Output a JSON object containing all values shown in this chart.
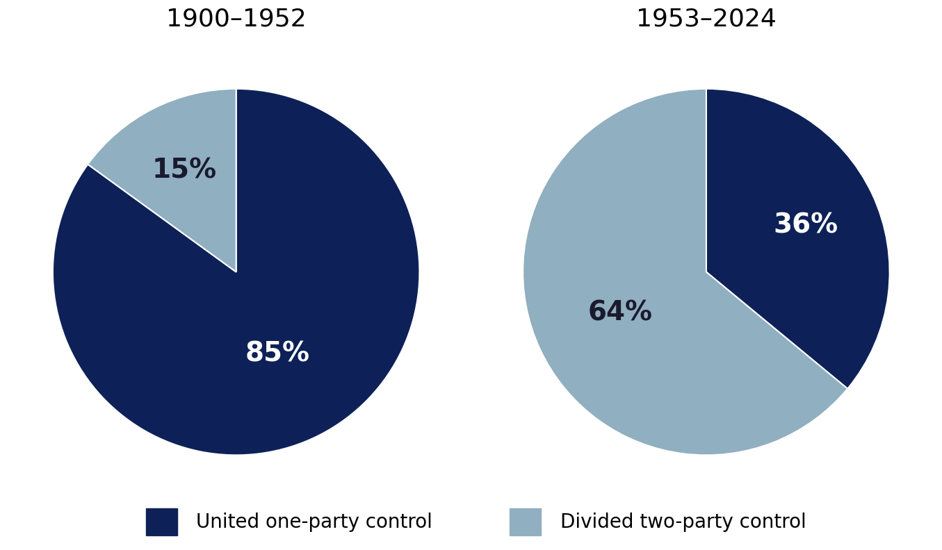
{
  "chart1_title": "1900–1952",
  "chart2_title": "1953–2024",
  "chart1_values": [
    85,
    15
  ],
  "chart2_values": [
    36,
    64
  ],
  "dark_blue": "#0d2158",
  "light_blue": "#90afc0",
  "legend_label1": "United one-party control",
  "legend_label2": "Divided two-party control",
  "background_color": "#ffffff",
  "title_fontsize": 26,
  "label_fontsize": 28,
  "legend_fontsize": 20,
  "chart1_label_colors": [
    "white",
    "#1a1a2e"
  ],
  "chart2_label_colors": [
    "white",
    "#1a1a2e"
  ],
  "chart1_label_radii": [
    0.5,
    0.62
  ],
  "chart2_label_radii": [
    0.6,
    0.52
  ]
}
